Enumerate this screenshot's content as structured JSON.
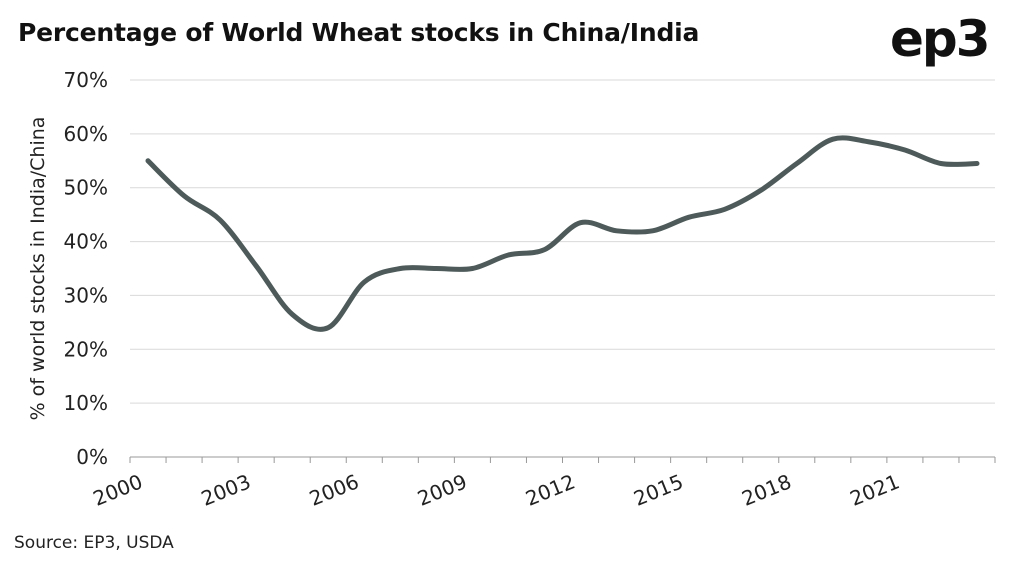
{
  "title": "Percentage of World Wheat stocks in China/India",
  "logo_text": "ep3",
  "source": "Source: EP3, USDA",
  "colors": {
    "line": "#4d5a59",
    "grid": "#d9d9d9",
    "axis": "#999999"
  },
  "chart_data": {
    "type": "line",
    "title": "Percentage of World Wheat stocks in China/India",
    "xlabel": "",
    "ylabel": "% of world stocks in India/China",
    "ylim": [
      0,
      70
    ],
    "xlim": [
      2000,
      2024
    ],
    "y_ticks": [
      "0%",
      "10%",
      "20%",
      "30%",
      "40%",
      "50%",
      "60%",
      "70%"
    ],
    "x_ticks": [
      "2000",
      "2003",
      "2006",
      "2009",
      "2012",
      "2015",
      "2018",
      "2021"
    ],
    "grid": true,
    "series": [
      {
        "x": [
          2000.5,
          2001.5,
          2002.5,
          2003.5,
          2004.5,
          2005.5,
          2006.5,
          2007.5,
          2008.5,
          2009.5,
          2010.5,
          2011.5,
          2012.5,
          2013.5,
          2014.5,
          2015.5,
          2016.5,
          2017.5,
          2018.5,
          2019.5,
          2020.5,
          2021.5,
          2022.5,
          2023.5
        ],
        "values": [
          55,
          48.5,
          44,
          35.5,
          26.5,
          24,
          32.5,
          35,
          35,
          35,
          37.5,
          38.5,
          43.5,
          42,
          42,
          44.5,
          46,
          49.5,
          54.5,
          59,
          58.5,
          57,
          54.5,
          54.5
        ]
      }
    ]
  }
}
